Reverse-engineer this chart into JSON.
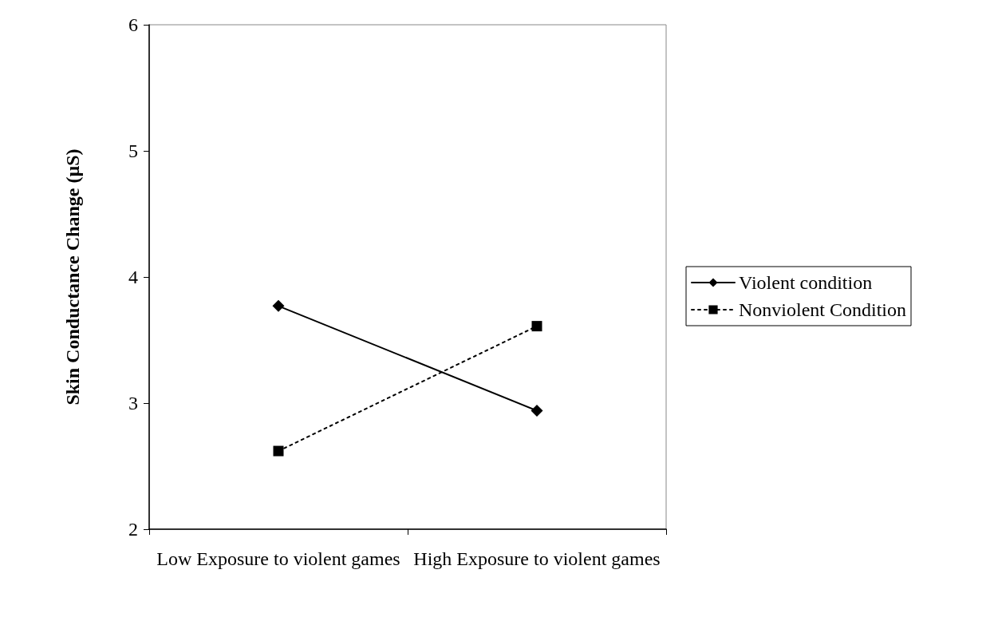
{
  "chart_data": {
    "type": "line",
    "ylabel": "Skin Conductance Change (µS)",
    "categories": [
      "Low Exposure to violent games",
      "High Exposure to violent games"
    ],
    "series": [
      {
        "name": "Violent condition",
        "color": "#000000",
        "values": [
          3.77,
          2.94
        ],
        "marker": "diamond",
        "line_style": "solid"
      },
      {
        "name": "Nonviolent Condition",
        "color": "#000000",
        "values": [
          2.62,
          3.61
        ],
        "marker": "square",
        "line_style": "dotted"
      }
    ],
    "ylim": [
      2,
      6
    ],
    "yticks": [
      2,
      3,
      4,
      5,
      6
    ],
    "grid": false,
    "legend": "right"
  }
}
